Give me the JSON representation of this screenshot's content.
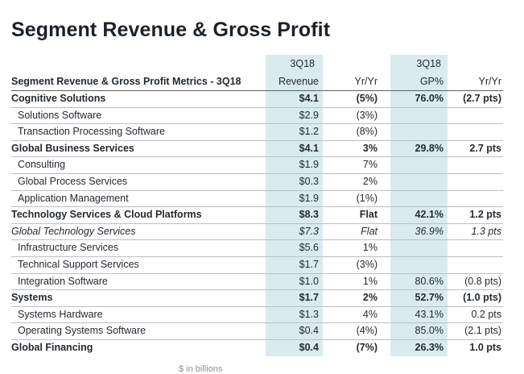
{
  "title": "Segment Revenue & Gross Profit",
  "footnote_clipped": "$ in billions",
  "colors": {
    "highlight": "#d9ebef",
    "text": "#242a31",
    "row_line": "#bcc0c4",
    "header_line": "#5c6167"
  },
  "chart_data": {
    "type": "table",
    "title": "Segment Revenue & Gross Profit",
    "columns": [
      "Segment Revenue & Gross Profit Metrics - 3Q18",
      "3Q18 Revenue",
      "Yr/Yr",
      "3Q18 GP%",
      "Yr/Yr"
    ],
    "header": {
      "metrics_label": "Segment Revenue & Gross Profit Metrics - 3Q18",
      "revenue_top": "3Q18",
      "revenue_bottom": "Revenue",
      "revenue_yoy": "Yr/Yr",
      "gp_top": "3Q18",
      "gp_bottom": "GP%",
      "gp_yoy": "Yr/Yr"
    },
    "rows": [
      {
        "label": "Cognitive Solutions",
        "style": "section",
        "revenue": "$4.1",
        "rev_yr": "(5%)",
        "gp": "76.0%",
        "gp_yr": "(2.7 pts)"
      },
      {
        "label": "Solutions Software",
        "style": "sub",
        "revenue": "$2.9",
        "rev_yr": "(3%)",
        "gp": "",
        "gp_yr": ""
      },
      {
        "label": "Transaction Processing Software",
        "style": "sub",
        "revenue": "$1.2",
        "rev_yr": "(8%)",
        "gp": "",
        "gp_yr": ""
      },
      {
        "label": "Global Business Services",
        "style": "section",
        "revenue": "$4.1",
        "rev_yr": "3%",
        "gp": "29.8%",
        "gp_yr": "2.7 pts"
      },
      {
        "label": "Consulting",
        "style": "sub",
        "revenue": "$1.9",
        "rev_yr": "7%",
        "gp": "",
        "gp_yr": ""
      },
      {
        "label": "Global Process Services",
        "style": "sub",
        "revenue": "$0.3",
        "rev_yr": "2%",
        "gp": "",
        "gp_yr": ""
      },
      {
        "label": "Application Management",
        "style": "sub",
        "revenue": "$1.9",
        "rev_yr": "(1%)",
        "gp": "",
        "gp_yr": ""
      },
      {
        "label": "Technology Services & Cloud Platforms",
        "style": "section",
        "revenue": "$8.3",
        "rev_yr": "Flat",
        "gp": "42.1%",
        "gp_yr": "1.2 pts"
      },
      {
        "label": "Global Technology Services",
        "style": "italic",
        "revenue": "$7.3",
        "rev_yr": "Flat",
        "gp": "36.9%",
        "gp_yr": "1.3 pts"
      },
      {
        "label": "Infrastructure Services",
        "style": "sub",
        "revenue": "$5.6",
        "rev_yr": "1%",
        "gp": "",
        "gp_yr": ""
      },
      {
        "label": "Technical Support Services",
        "style": "sub",
        "revenue": "$1.7",
        "rev_yr": "(3%)",
        "gp": "",
        "gp_yr": ""
      },
      {
        "label": "Integration Software",
        "style": "sub",
        "revenue": "$1.0",
        "rev_yr": "1%",
        "gp": "80.6%",
        "gp_yr": "(0.8 pts)"
      },
      {
        "label": "Systems",
        "style": "section",
        "revenue": "$1.7",
        "rev_yr": "2%",
        "gp": "52.7%",
        "gp_yr": "(1.0 pts)"
      },
      {
        "label": "Systems Hardware",
        "style": "sub",
        "revenue": "$1.3",
        "rev_yr": "4%",
        "gp": "43.1%",
        "gp_yr": "0.2 pts"
      },
      {
        "label": "Operating Systems Software",
        "style": "sub",
        "revenue": "$0.4",
        "rev_yr": "(4%)",
        "gp": "85.0%",
        "gp_yr": "(2.1 pts)"
      },
      {
        "label": "Global Financing",
        "style": "section",
        "revenue": "$0.4",
        "rev_yr": "(7%)",
        "gp": "26.3%",
        "gp_yr": "1.0 pts"
      }
    ]
  }
}
